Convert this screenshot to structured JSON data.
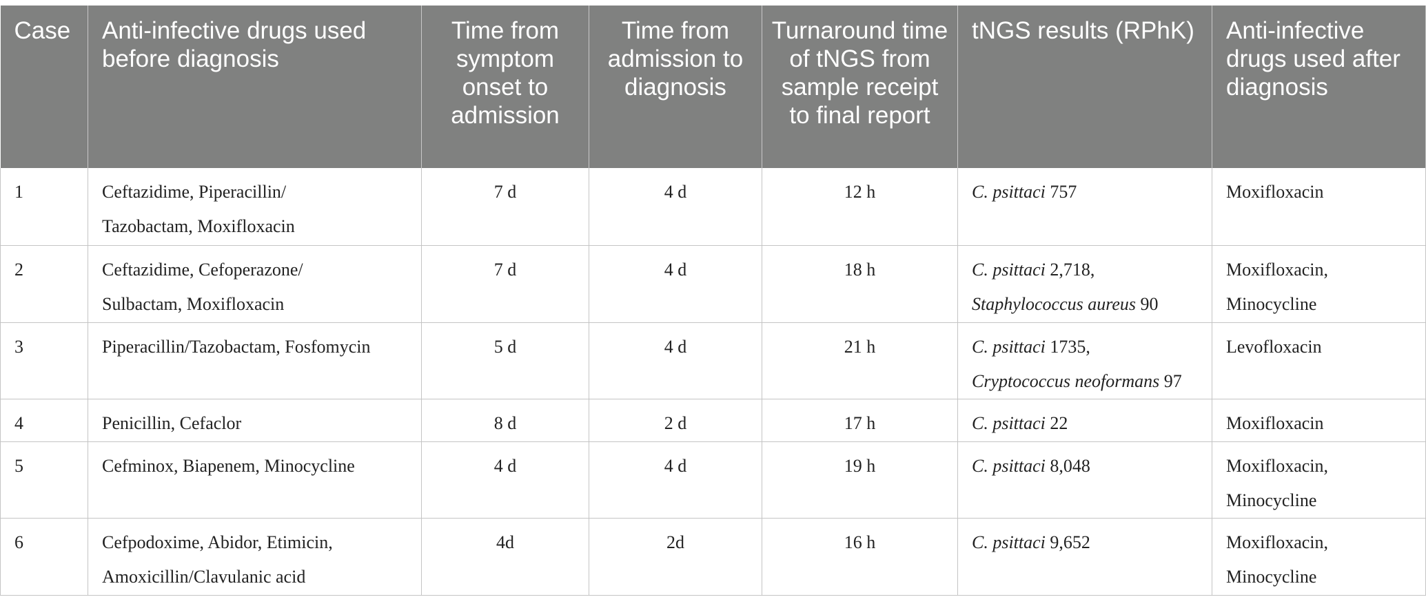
{
  "headers": [
    "Case",
    "Anti-infective drugs used before diagnosis",
    "Time from symptom onset to admission",
    "Time from admission to diagnosis",
    "Turnaround time of tNGS from sample receipt to final report",
    "tNGS results (RPhK)",
    "Anti-infective drugs used after diagnosis"
  ],
  "rows": [
    {
      "case": "1",
      "before": [
        "Ceftazidime, Piperacillin/",
        "Tazobactam, Moxifloxacin"
      ],
      "onset": "7 d",
      "admission": "4 d",
      "turnaround": "12 h",
      "results": [
        {
          "organism": "C. psittaci",
          "count": " 757"
        }
      ],
      "after": [
        "Moxifloxacin"
      ]
    },
    {
      "case": "2",
      "before": [
        "Ceftazidime, Cefoperazone/",
        "Sulbactam, Moxifloxacin"
      ],
      "onset": "7 d",
      "admission": "4 d",
      "turnaround": "18 h",
      "results": [
        {
          "organism": "C. psittaci",
          "count": " 2,718,"
        },
        {
          "organism": "Staphylococcus aureus",
          "count": " 90"
        }
      ],
      "after": [
        "Moxifloxacin,",
        "Minocycline"
      ]
    },
    {
      "case": "3",
      "before": [
        "Piperacillin/Tazobactam, Fosfomycin"
      ],
      "onset": "5 d",
      "admission": "4 d",
      "turnaround": "21 h",
      "results": [
        {
          "organism": "C. psittaci",
          "count": " 1735,"
        },
        {
          "organism": "Cryptococcus neoformans",
          "count": " 97"
        }
      ],
      "after": [
        "Levofloxacin"
      ]
    },
    {
      "case": "4",
      "before": [
        "Penicillin, Cefaclor"
      ],
      "onset": "8 d",
      "admission": "2 d",
      "turnaround": "17 h",
      "results": [
        {
          "organism": "C. psittaci",
          "count": " 22"
        }
      ],
      "after": [
        "Moxifloxacin"
      ]
    },
    {
      "case": "5",
      "before": [
        "Cefminox, Biapenem, Minocycline"
      ],
      "onset": "4 d",
      "admission": "4 d",
      "turnaround": "19 h",
      "results": [
        {
          "organism": "C. psittaci",
          "count": " 8,048"
        }
      ],
      "after": [
        "Moxifloxacin,",
        "Minocycline"
      ]
    },
    {
      "case": "6",
      "before": [
        "Cefpodoxime, Abidor, Etimicin,",
        "Amoxicillin/Clavulanic acid"
      ],
      "onset": "4d",
      "admission": "2d",
      "turnaround": "16 h",
      "results": [
        {
          "organism": "C. psittaci",
          "count": " 9,652"
        }
      ],
      "after": [
        "Moxifloxacin,",
        "Minocycline"
      ]
    }
  ],
  "colors": {
    "header_bg": "#808180",
    "header_text": "#ffffff",
    "grid": "#c4c4c4"
  }
}
